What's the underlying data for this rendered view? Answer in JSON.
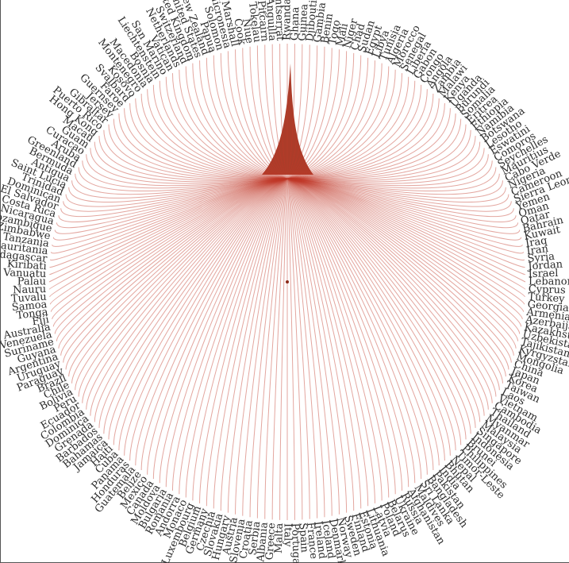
{
  "diagram": {
    "type": "radial-tree",
    "root_color": "#a8321e",
    "link_color": "#c0392b",
    "labels": [
      "Rwanda",
      "Ghana",
      "Guinea",
      "Djibouti",
      "Gambia",
      "Benin",
      "Togo",
      "Mali",
      "Niger",
      "Chad",
      "Sudan",
      "Egypt",
      "Libya",
      "Tunisia",
      "Algeria",
      "Morocco",
      "Senegal",
      "Liberia",
      "Gabon",
      "Congo",
      "Angola",
      "Zambia",
      "Malawi",
      "Kenya",
      "Uganda",
      "Burundi",
      "Somalia",
      "Eritrea",
      "Ethiopia",
      "Namibia",
      "Botswana",
      "Lesotho",
      "Eswatini",
      "Comoros",
      "Seychelles",
      "Mauritius",
      "Cabo Verde",
      "Nigeria",
      "Cameroon",
      "Sierra Leone",
      "Yemen",
      "Oman",
      "Qatar",
      "Bahrain",
      "Kuwait",
      "Iraq",
      "Iran",
      "Syria",
      "Jordan",
      "Israel",
      "Lebanon",
      "Cyprus",
      "Turkey",
      "Georgia",
      "Armenia",
      "Azerbaijan",
      "Kazakhstan",
      "Uzbekistan",
      "Tajikistan",
      "Kyrgyzstan",
      "Mongolia",
      "China",
      "Japan",
      "Korea",
      "Taiwan",
      "Laos",
      "Vietnam",
      "Cambodia",
      "Thailand",
      "Myanmar",
      "Malaysia",
      "Singapore",
      "Indonesia",
      "Brunei",
      "Philippines",
      "Timor-Leste",
      "Nepal",
      "Bhutan",
      "India",
      "Pakistan",
      "Bangladesh",
      "Sri Lanka",
      "Maldives",
      "Afghanistan",
      "Russia",
      "Ukraine",
      "Belarus",
      "Poland",
      "Latvia",
      "Lithuania",
      "Estonia",
      "Finland",
      "Sweden",
      "Norway",
      "Denmark",
      "Iceland",
      "Ireland",
      "France",
      "Spain",
      "Portugal",
      "Italy",
      "Malta",
      "Greece",
      "Albania",
      "Serbia",
      "Croatia",
      "Slovenia",
      "Austria",
      "Hungary",
      "Slovakia",
      "Czechia",
      "Germany",
      "Belgium",
      "Luxembourg",
      "Monaco",
      "Andorra",
      "Romania",
      "Bulgaria",
      "Moldova",
      "Canada",
      "Mexico",
      "Belize",
      "Guatemala",
      "Honduras",
      "Panama",
      "Cuba",
      "Haiti",
      "Jamaica",
      "Bahamas",
      "Barbados",
      "Grenada",
      "Dominica",
      "Colombia",
      "Ecuador",
      "Peru",
      "Bolivia",
      "Chile",
      "Brazil",
      "Paraguay",
      "Uruguay",
      "Argentina",
      "Guyana",
      "Suriname",
      "Venezuela",
      "Australia",
      "Fiji",
      "Tonga",
      "Samoa",
      "Tuvalu",
      "Nauru",
      "Palau",
      "Vanuatu",
      "Kiribati",
      "Madagascar",
      "Mauritania",
      "Tanzania",
      "Zimbabwe",
      "Mozambique",
      "Nicaragua",
      "Costa Rica",
      "El Salvador",
      "Dominican",
      "Trinidad",
      "Saint Lucia",
      "Antigua",
      "Bermuda",
      "Greenland",
      "Aruba",
      "Curacao",
      "Guam",
      "Macau",
      "Hong Kong",
      "Puerto Rico",
      "Gibraltar",
      "Jersey",
      "Guernsey",
      "Faroe",
      "Svalbard",
      "Kosovo",
      "Montenegro",
      "Macedonia",
      "Bosnia",
      "Liechtenstein",
      "San Marino",
      "Vatican",
      "Netherlands",
      "Switzerland",
      "United Kingdom",
      "United States",
      "New Zealand",
      "Papua",
      "Solomon",
      "Micronesia",
      "Marshall",
      "Cook",
      "Niue",
      "Tokelau",
      "Pitcairn",
      "Anguilla",
      "Montserrat"
    ]
  }
}
